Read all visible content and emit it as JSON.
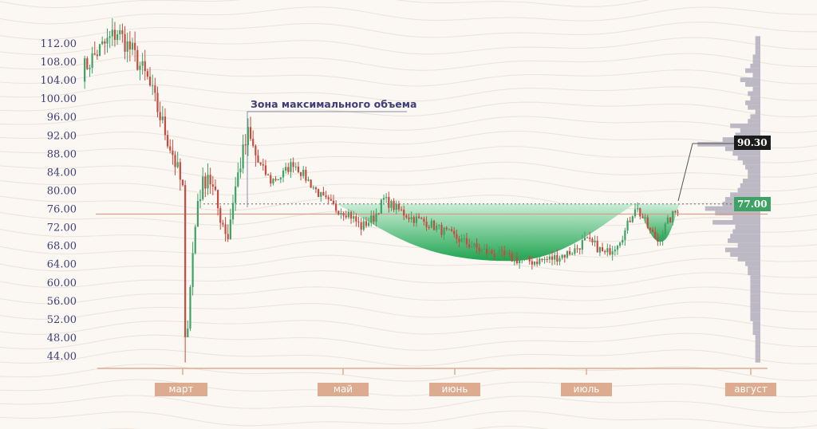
{
  "chart_data": {
    "type": "candlestick",
    "y_ticks": [
      "112.00",
      "108.00",
      "104.00",
      "100.00",
      "96.00",
      "92.00",
      "88.00",
      "84.00",
      "80.00",
      "76.00",
      "72.00",
      "68.00",
      "64.00",
      "60.00",
      "56.00",
      "52.00",
      "48.00",
      "44.00"
    ],
    "ylim": [
      42,
      115
    ],
    "x_months": [
      "март",
      "май",
      "июнь",
      "июль",
      "август"
    ],
    "annotation": "Зона максимального объема",
    "price_labels": {
      "poc": "90.30",
      "current": "77.00"
    },
    "current_price": 77.0,
    "support_level": 74.8,
    "price_path": [
      [
        0,
        106
      ],
      [
        6,
        110
      ],
      [
        14,
        114.5
      ],
      [
        20,
        110
      ],
      [
        26,
        104
      ],
      [
        31,
        96
      ],
      [
        36,
        88
      ],
      [
        40,
        80
      ],
      [
        41,
        44
      ],
      [
        43,
        60
      ],
      [
        46,
        78
      ],
      [
        50,
        84
      ],
      [
        54,
        76
      ],
      [
        58,
        70
      ],
      [
        60,
        78
      ],
      [
        63,
        86
      ],
      [
        66,
        92
      ],
      [
        70,
        86
      ],
      [
        75,
        82
      ],
      [
        79,
        83
      ],
      [
        84,
        86
      ],
      [
        90,
        82
      ],
      [
        96,
        78
      ],
      [
        101,
        76
      ],
      [
        106,
        75
      ],
      [
        111,
        72
      ],
      [
        116,
        74
      ],
      [
        120,
        78
      ],
      [
        125,
        76
      ],
      [
        131,
        74
      ],
      [
        137,
        73
      ],
      [
        144,
        71
      ],
      [
        151,
        69
      ],
      [
        158,
        67
      ],
      [
        165,
        66
      ],
      [
        172,
        65
      ],
      [
        179,
        64.5
      ],
      [
        186,
        65
      ],
      [
        192,
        66
      ],
      [
        196,
        67
      ],
      [
        200,
        69
      ],
      [
        204,
        68
      ],
      [
        208,
        66
      ],
      [
        212,
        68
      ],
      [
        216,
        71
      ],
      [
        220,
        76.5
      ],
      [
        223,
        74
      ],
      [
        226,
        71
      ],
      [
        229,
        69
      ],
      [
        233,
        73
      ],
      [
        237,
        76
      ]
    ],
    "volume_profile": [
      [
        113,
        2
      ],
      [
        112,
        2
      ],
      [
        111,
        2
      ],
      [
        110,
        2
      ],
      [
        109,
        3
      ],
      [
        108,
        3
      ],
      [
        107,
        4
      ],
      [
        106,
        6
      ],
      [
        105,
        3
      ],
      [
        104,
        8
      ],
      [
        103,
        6
      ],
      [
        102,
        3
      ],
      [
        101,
        5
      ],
      [
        100,
        4
      ],
      [
        99,
        6
      ],
      [
        98,
        5
      ],
      [
        97,
        2
      ],
      [
        96,
        4
      ],
      [
        95,
        5
      ],
      [
        94,
        12
      ],
      [
        93,
        8
      ],
      [
        92,
        10
      ],
      [
        91,
        15
      ],
      [
        90,
        25
      ],
      [
        89,
        14
      ],
      [
        88,
        11
      ],
      [
        87,
        9
      ],
      [
        86,
        7
      ],
      [
        85,
        6
      ],
      [
        84,
        5
      ],
      [
        83,
        5
      ],
      [
        82,
        7
      ],
      [
        81,
        8
      ],
      [
        80,
        9
      ],
      [
        79,
        12
      ],
      [
        78,
        14
      ],
      [
        77,
        15
      ],
      [
        76,
        22
      ],
      [
        75,
        18
      ],
      [
        74,
        11
      ],
      [
        73,
        19
      ],
      [
        72,
        10
      ],
      [
        71,
        11
      ],
      [
        70,
        12
      ],
      [
        69,
        13
      ],
      [
        68,
        9
      ],
      [
        67,
        14
      ],
      [
        66,
        12
      ],
      [
        65,
        9
      ],
      [
        64,
        6
      ],
      [
        63,
        5
      ],
      [
        62,
        5
      ],
      [
        61,
        4
      ],
      [
        60,
        4
      ],
      [
        59,
        4
      ],
      [
        58,
        4
      ],
      [
        57,
        4
      ],
      [
        56,
        4
      ],
      [
        55,
        4
      ],
      [
        54,
        4
      ],
      [
        53,
        4
      ],
      [
        52,
        4
      ],
      [
        51,
        3
      ],
      [
        50,
        3
      ],
      [
        49,
        3
      ],
      [
        48,
        2
      ],
      [
        47,
        2
      ],
      [
        46,
        2
      ],
      [
        45,
        2
      ],
      [
        44,
        2
      ],
      [
        43,
        2
      ]
    ],
    "colors": {
      "up": "#3da264",
      "down": "#c84a3f",
      "text": "#3f3d78",
      "volume": "#bcb8c4",
      "axis": "#dcab90",
      "fill": "#3cb46c"
    }
  }
}
